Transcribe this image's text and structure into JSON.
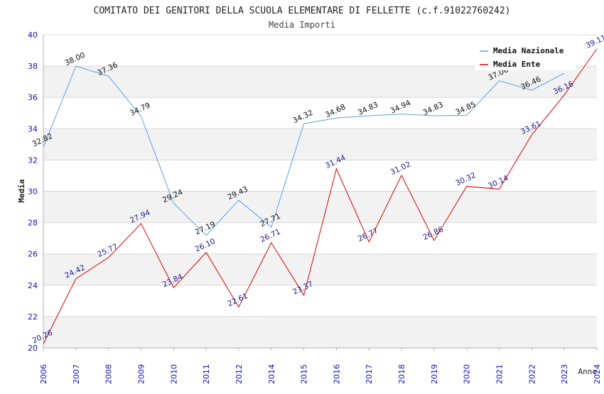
{
  "chart_data": {
    "type": "line",
    "title": "COMITATO DEI GENITORI DELLA SCUOLA ELEMENTARE DI FELLETTE (c.f.91022760242)",
    "subtitle": "Media Importi",
    "xlabel": "Anno",
    "ylabel": "Media",
    "ylim": [
      20,
      40
    ],
    "yticks": [
      20,
      22,
      24,
      26,
      28,
      30,
      32,
      34,
      36,
      38,
      40
    ],
    "categories": [
      "2006",
      "2007",
      "2008",
      "2009",
      "2010",
      "2011",
      "2012",
      "2014",
      "2015",
      "2016",
      "2017",
      "2018",
      "2019",
      "2020",
      "2021",
      "2022",
      "2023",
      "2024"
    ],
    "grid": true,
    "legend_position": "top-right",
    "series": [
      {
        "name": "Media Nazionale",
        "color": "#5aa0e6",
        "values": [
          32.82,
          38.0,
          37.36,
          34.79,
          29.24,
          27.19,
          29.43,
          27.71,
          34.32,
          34.68,
          34.83,
          34.94,
          34.83,
          34.85,
          37.06,
          36.46,
          37.55,
          null
        ],
        "labels": [
          "32.82",
          "38.00",
          "37.36",
          "34.79",
          "29.24",
          "27.19",
          "29.43",
          "27.71",
          "34.32",
          "34.68",
          "34.83",
          "34.94",
          "34.83",
          "34.85",
          "37.06",
          "36.46",
          "",
          ""
        ]
      },
      {
        "name": "Media Ente",
        "color": "#e00000",
        "values": [
          20.26,
          24.42,
          25.77,
          27.94,
          23.84,
          26.1,
          22.61,
          26.71,
          23.37,
          31.44,
          26.77,
          31.02,
          26.86,
          30.32,
          30.14,
          33.61,
          36.16,
          39.11
        ],
        "labels": [
          "20.26",
          "24.42",
          "25.77",
          "27.94",
          "23.84",
          "26.10",
          "22.61",
          "26.71",
          "23.37",
          "31.44",
          "26.77",
          "31.02",
          "26.86",
          "30.32",
          "30.14",
          "33.61",
          "36.16",
          "39.11"
        ]
      }
    ]
  }
}
